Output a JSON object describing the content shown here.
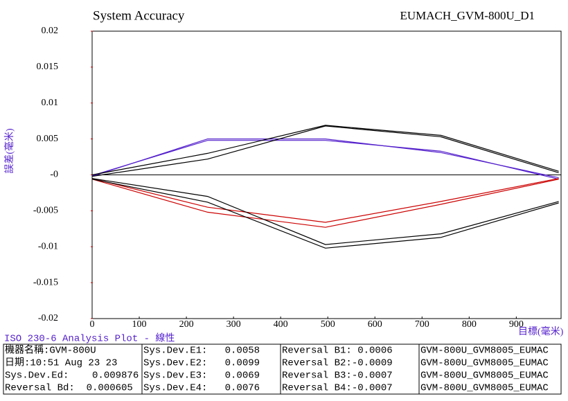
{
  "chart_data": {
    "type": "line",
    "title": "System Accuracy",
    "subtitle": "EUMACH_GVM-800U_D1",
    "x_label": "目標(毫米)",
    "y_label": "誤差(毫米)",
    "x": [
      0,
      245,
      495,
      740,
      990
    ],
    "xlim": [
      0,
      995
    ],
    "xticks": [
      0,
      100,
      200,
      300,
      400,
      500,
      600,
      700,
      800,
      900
    ],
    "ylim": [
      -0.02,
      0.02
    ],
    "yticks": [
      0.02,
      0.015,
      0.01,
      0.005,
      {
        "value": 0,
        "label": "-0"
      },
      -0.005,
      -0.01,
      -0.015,
      -0.02
    ],
    "grid": false,
    "series": [
      {
        "color": "#5522cc",
        "values": [
          -0.0002,
          0.005,
          0.005,
          0.0031,
          -0.0004
        ]
      },
      {
        "color": "#5522cc",
        "values": [
          -0.0001,
          0.0048,
          0.0048,
          0.0033,
          -0.0006
        ]
      },
      {
        "color": "#000000",
        "values": [
          -0.0002,
          0.0022,
          0.0068,
          0.0053,
          0.0003
        ]
      },
      {
        "color": "#000000",
        "values": [
          0,
          0.003,
          0.0069,
          0.0055,
          0.0005
        ]
      },
      {
        "color": "#cc0000",
        "values": [
          -0.0006,
          -0.0052,
          -0.0073,
          -0.0041,
          -0.0006
        ]
      },
      {
        "color": "#cc0000",
        "values": [
          -0.0005,
          -0.0045,
          -0.0066,
          -0.0037,
          -0.0005
        ]
      },
      {
        "color": "#000000",
        "values": [
          -0.0005,
          -0.003,
          -0.0097,
          -0.0082,
          -0.0037
        ]
      },
      {
        "color": "#000000",
        "values": [
          -0.0006,
          -0.0038,
          -0.0102,
          -0.0087,
          -0.0039
        ]
      }
    ]
  },
  "footer_title": "ISO 230-6 Analysis Plot - 線性",
  "table": {
    "rows": [
      [
        "機器名稱:GVM-800U",
        "Sys.Dev.E1:   0.0058",
        "Reversal B1: 0.0006",
        "GVM-800U_GVM8005_EUMAC"
      ],
      [
        "日期:10:51 Aug 23 23",
        "Sys.Dev.E2:   0.0099",
        "Reversal B2:-0.0009",
        "GVM-800U_GVM8005_EUMAC"
      ],
      [
        "Sys.Dev.Ed:    0.009876",
        "Sys.Dev.E3:   0.0069",
        "Reversal B3:-0.0007",
        "GVM-800U_GVM8005_EUMAC"
      ],
      [
        "Reversal Bd:  0.000605",
        "Sys.Dev.E4:   0.0076",
        "Reversal B4:-0.0007",
        "GVM-800U_GVM8005_EUMAC"
      ]
    ]
  }
}
